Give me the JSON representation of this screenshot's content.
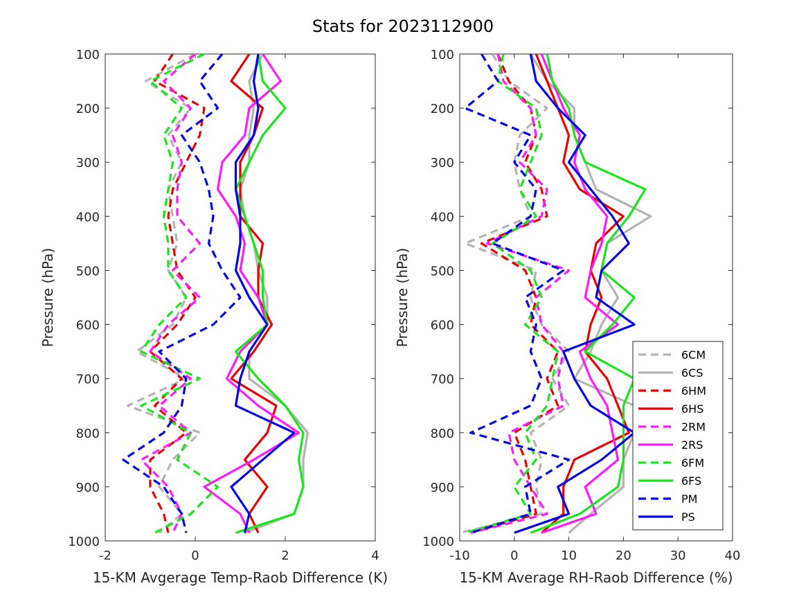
{
  "figure": {
    "title": "Stats for 2023112900"
  },
  "chart_data": [
    {
      "type": "line",
      "xlabel": "15-KM Avgerage Temp-Raob Difference (K)",
      "ylabel": "Pressure (hPa)",
      "xlim": [
        -2,
        4
      ],
      "ylim": [
        100,
        1000
      ],
      "y_reversed": true,
      "xticks": [
        "-2",
        "0",
        "2",
        "4"
      ],
      "yticks": [
        "100",
        "200",
        "300",
        "400",
        "500",
        "600",
        "700",
        "800",
        "900",
        "1000"
      ],
      "grid": false,
      "pressure": [
        100,
        150,
        200,
        250,
        300,
        350,
        400,
        450,
        500,
        550,
        600,
        650,
        700,
        750,
        800,
        850,
        900,
        950,
        985
      ],
      "series": [
        {
          "name": "6CM",
          "color": "#b3b3b3",
          "dash": true,
          "values": [
            0.0,
            -1.1,
            -0.1,
            -0.6,
            -0.3,
            -0.6,
            -0.5,
            -0.4,
            -0.6,
            -0.2,
            -0.5,
            -1.3,
            -0.2,
            -1.5,
            0.1,
            -0.5,
            -0.8,
            -0.3,
            -0.8
          ]
        },
        {
          "name": "6CS",
          "color": "#b3b3b3",
          "dash": false,
          "values": [
            1.5,
            1.2,
            1.3,
            1.2,
            1.2,
            1.0,
            1.1,
            1.3,
            1.4,
            1.6,
            1.6,
            1.2,
            1.2,
            2.0,
            2.5,
            2.4,
            2.4,
            2.2,
            1.1
          ]
        },
        {
          "name": "6HM",
          "color": "#e60000",
          "dash": true,
          "values": [
            -0.5,
            -0.9,
            0.2,
            0.1,
            -0.2,
            -0.5,
            -0.6,
            -0.5,
            -0.4,
            0.0,
            -0.4,
            -1.0,
            -0.3,
            -0.9,
            -0.2,
            -1.0,
            -1.0,
            -0.7,
            -0.6
          ]
        },
        {
          "name": "6HS",
          "color": "#e60000",
          "dash": false,
          "values": [
            1.2,
            0.8,
            1.5,
            1.3,
            1.0,
            1.0,
            1.0,
            1.5,
            1.4,
            1.4,
            1.7,
            1.3,
            0.8,
            1.8,
            1.6,
            1.1,
            1.6,
            1.2,
            1.4
          ]
        },
        {
          "name": "2RM",
          "color": "#ff19ff",
          "dash": true,
          "values": [
            0.0,
            -0.7,
            -0.1,
            -0.5,
            -0.3,
            -0.4,
            -0.4,
            0.1,
            -0.5,
            0.1,
            -0.6,
            -1.0,
            -0.1,
            -0.8,
            -0.1,
            -1.2,
            -0.6,
            -0.3,
            -0.5
          ]
        },
        {
          "name": "2RS",
          "color": "#ff19ff",
          "dash": false,
          "values": [
            1.5,
            1.9,
            1.2,
            1.1,
            0.6,
            0.5,
            0.9,
            1.1,
            1.0,
            1.4,
            1.6,
            1.0,
            0.7,
            1.4,
            2.3,
            1.3,
            0.2,
            1.0,
            1.2
          ]
        },
        {
          "name": "6FM",
          "color": "#19e619",
          "dash": true,
          "values": [
            0.2,
            -1.0,
            -0.3,
            -0.7,
            -0.5,
            -0.6,
            -0.7,
            -0.6,
            -0.6,
            -0.2,
            -0.8,
            -1.2,
            0.1,
            -1.2,
            -0.1,
            -0.4,
            0.5,
            -0.1,
            -0.9
          ]
        },
        {
          "name": "6FS",
          "color": "#19e619",
          "dash": false,
          "values": [
            1.4,
            1.5,
            2.0,
            1.5,
            1.2,
            0.9,
            1.1,
            1.3,
            1.5,
            1.5,
            1.6,
            0.9,
            1.4,
            2.0,
            2.4,
            2.3,
            2.4,
            2.2,
            0.9
          ]
        },
        {
          "name": "PM",
          "color": "#0000e6",
          "dash": true,
          "values": [
            0.6,
            0.1,
            0.5,
            -0.3,
            0.1,
            0.3,
            0.4,
            0.3,
            0.6,
            1.0,
            0.4,
            -0.8,
            -0.2,
            -0.3,
            -0.7,
            -1.6,
            -0.7,
            -0.3,
            -0.2
          ]
        },
        {
          "name": "PS",
          "color": "#0000e6",
          "dash": false,
          "values": [
            1.4,
            1.3,
            1.4,
            1.3,
            0.9,
            0.9,
            1.0,
            1.0,
            0.9,
            1.2,
            1.6,
            1.2,
            1.0,
            0.9,
            2.2,
            1.5,
            0.8,
            1.2,
            1.1
          ]
        }
      ]
    },
    {
      "type": "line",
      "xlabel": "15-KM Average RH-Raob Difference (%)",
      "ylabel": "Pressure (hPa)",
      "xlim": [
        -10,
        40
      ],
      "ylim": [
        100,
        1000
      ],
      "y_reversed": true,
      "xticks": [
        "-10",
        "0",
        "10",
        "20",
        "30",
        "40"
      ],
      "yticks": [
        "100",
        "200",
        "300",
        "400",
        "500",
        "600",
        "700",
        "800",
        "900",
        "1000"
      ],
      "grid": false,
      "legend": "bottom-right",
      "pressure": [
        100,
        150,
        200,
        250,
        300,
        350,
        400,
        450,
        500,
        550,
        600,
        650,
        700,
        750,
        800,
        850,
        900,
        950,
        985
      ],
      "series": [
        {
          "name": "6CM",
          "color": "#b3b3b3",
          "dash": true,
          "values": [
            -4,
            -1,
            6,
            1,
            0,
            1,
            3,
            -9,
            4,
            3,
            5,
            10,
            7,
            10,
            3,
            5,
            4,
            5,
            -10
          ]
        },
        {
          "name": "6CS",
          "color": "#b3b3b3",
          "dash": false,
          "values": [
            3,
            6,
            11,
            11,
            13,
            15,
            25,
            17,
            16,
            19,
            16,
            14,
            11,
            22,
            22,
            20,
            20,
            14,
            10
          ]
        },
        {
          "name": "6HM",
          "color": "#e60000",
          "dash": true,
          "values": [
            -3,
            -1,
            3,
            4,
            2,
            5,
            6,
            -6,
            2,
            4,
            3,
            8,
            6,
            8,
            0,
            2,
            3,
            4,
            -8
          ]
        },
        {
          "name": "6HS",
          "color": "#e60000",
          "dash": false,
          "values": [
            4,
            6,
            8,
            10,
            9,
            12,
            20,
            15,
            14,
            16,
            14,
            13,
            17,
            19,
            21,
            11,
            9,
            9,
            5
          ]
        },
        {
          "name": "2RM",
          "color": "#ff19ff",
          "dash": true,
          "values": [
            -3,
            -2,
            3,
            4,
            1,
            6,
            5,
            -5,
            10,
            4,
            5,
            9,
            8,
            9,
            -1,
            0,
            3,
            6,
            -8
          ]
        },
        {
          "name": "2RS",
          "color": "#ff19ff",
          "dash": false,
          "values": [
            5,
            7,
            9,
            12,
            11,
            13,
            17,
            16,
            14,
            13,
            19,
            12,
            14,
            17,
            18,
            19,
            13,
            15,
            5
          ]
        },
        {
          "name": "6FM",
          "color": "#19e619",
          "dash": true,
          "values": [
            -2,
            -3,
            4,
            5,
            3,
            1,
            4,
            -4,
            3,
            5,
            2,
            8,
            7,
            6,
            2,
            4,
            0,
            3,
            -9
          ]
        },
        {
          "name": "6FS",
          "color": "#19e619",
          "dash": false,
          "values": [
            6,
            7,
            10,
            11,
            13,
            24,
            21,
            17,
            16,
            22,
            18,
            13,
            22,
            20,
            20,
            20,
            19,
            12,
            3
          ]
        },
        {
          "name": "PM",
          "color": "#0000e6",
          "dash": true,
          "values": [
            -6,
            -3,
            -9,
            3,
            0,
            4,
            3,
            -4,
            9,
            2,
            4,
            3,
            5,
            3,
            -8,
            10,
            2,
            3,
            -8
          ]
        },
        {
          "name": "PS",
          "color": "#0000e6",
          "dash": false,
          "values": [
            3,
            4,
            8,
            13,
            10,
            14,
            18,
            21,
            16,
            15,
            22,
            9,
            11,
            14,
            22,
            16,
            8,
            10,
            0
          ]
        }
      ]
    }
  ]
}
